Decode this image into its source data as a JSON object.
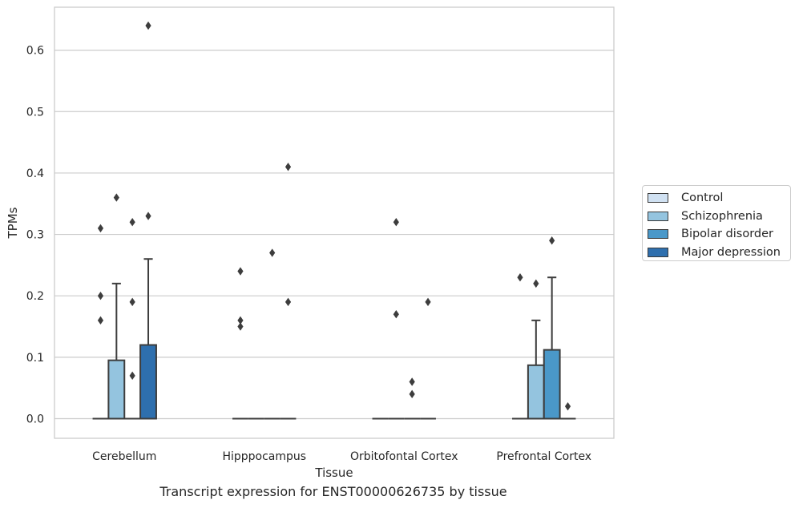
{
  "chart_data": {
    "type": "box",
    "title": "",
    "caption": "Transcript expression for ENST00000626735 by tissue",
    "xlabel": "Tissue",
    "ylabel": "TPMs",
    "ylim": [
      -0.032,
      0.67
    ],
    "yticks": [
      0.0,
      0.1,
      0.2,
      0.3,
      0.4,
      0.5,
      0.6
    ],
    "grid": "horizontal",
    "legend_position": "right",
    "categories": [
      "Cerebellum",
      "Hipppocampus",
      "Orbitofontal Cortex",
      "Prefrontal Cortex"
    ],
    "series": [
      {
        "name": "Control",
        "color": "#d0e1f2",
        "boxes": [
          {
            "q1": 0,
            "median": 0,
            "q3": 0,
            "whisker_low": 0,
            "whisker_high": 0,
            "outliers": [
              0.31,
              0.2,
              0.16
            ]
          },
          {
            "q1": 0,
            "median": 0,
            "q3": 0,
            "whisker_low": 0,
            "whisker_high": 0,
            "outliers": [
              0.24,
              0.16,
              0.15
            ]
          },
          {
            "q1": 0,
            "median": 0,
            "q3": 0,
            "whisker_low": 0,
            "whisker_high": 0,
            "outliers": []
          },
          {
            "q1": 0,
            "median": 0,
            "q3": 0,
            "whisker_low": 0,
            "whisker_high": 0,
            "outliers": [
              0.23
            ]
          }
        ]
      },
      {
        "name": "Schizophrenia",
        "color": "#94c4df",
        "boxes": [
          {
            "q1": 0,
            "median": 0,
            "q3": 0.095,
            "whisker_low": 0,
            "whisker_high": 0.22,
            "outliers": [
              0.36
            ]
          },
          {
            "q1": 0,
            "median": 0,
            "q3": 0,
            "whisker_low": 0,
            "whisker_high": 0,
            "outliers": []
          },
          {
            "q1": 0,
            "median": 0,
            "q3": 0,
            "whisker_low": 0,
            "whisker_high": 0,
            "outliers": [
              0.32,
              0.17
            ]
          },
          {
            "q1": 0,
            "median": 0,
            "q3": 0.087,
            "whisker_low": 0,
            "whisker_high": 0.16,
            "outliers": [
              0.22
            ]
          }
        ]
      },
      {
        "name": "Bipolar disorder",
        "color": "#4a98c9",
        "boxes": [
          {
            "q1": 0,
            "median": 0,
            "q3": 0,
            "whisker_low": 0,
            "whisker_high": 0,
            "outliers": [
              0.32,
              0.19,
              0.07
            ]
          },
          {
            "q1": 0,
            "median": 0,
            "q3": 0,
            "whisker_low": 0,
            "whisker_high": 0,
            "outliers": [
              0.27
            ]
          },
          {
            "q1": 0,
            "median": 0,
            "q3": 0,
            "whisker_low": 0,
            "whisker_high": 0,
            "outliers": [
              0.06,
              0.04
            ]
          },
          {
            "q1": 0,
            "median": 0,
            "q3": 0.112,
            "whisker_low": 0,
            "whisker_high": 0.23,
            "outliers": [
              0.29
            ]
          }
        ]
      },
      {
        "name": "Major depression",
        "color": "#2e6fae",
        "boxes": [
          {
            "q1": 0,
            "median": 0,
            "q3": 0.12,
            "whisker_low": 0,
            "whisker_high": 0.26,
            "outliers": [
              0.64,
              0.33
            ]
          },
          {
            "q1": 0,
            "median": 0,
            "q3": 0,
            "whisker_low": 0,
            "whisker_high": 0,
            "outliers": [
              0.41,
              0.19
            ]
          },
          {
            "q1": 0,
            "median": 0,
            "q3": 0,
            "whisker_low": 0,
            "whisker_high": 0,
            "outliers": [
              0.19
            ]
          },
          {
            "q1": 0,
            "median": 0,
            "q3": 0,
            "whisker_low": 0,
            "whisker_high": 0,
            "outliers": [
              0.02
            ]
          }
        ]
      }
    ]
  }
}
